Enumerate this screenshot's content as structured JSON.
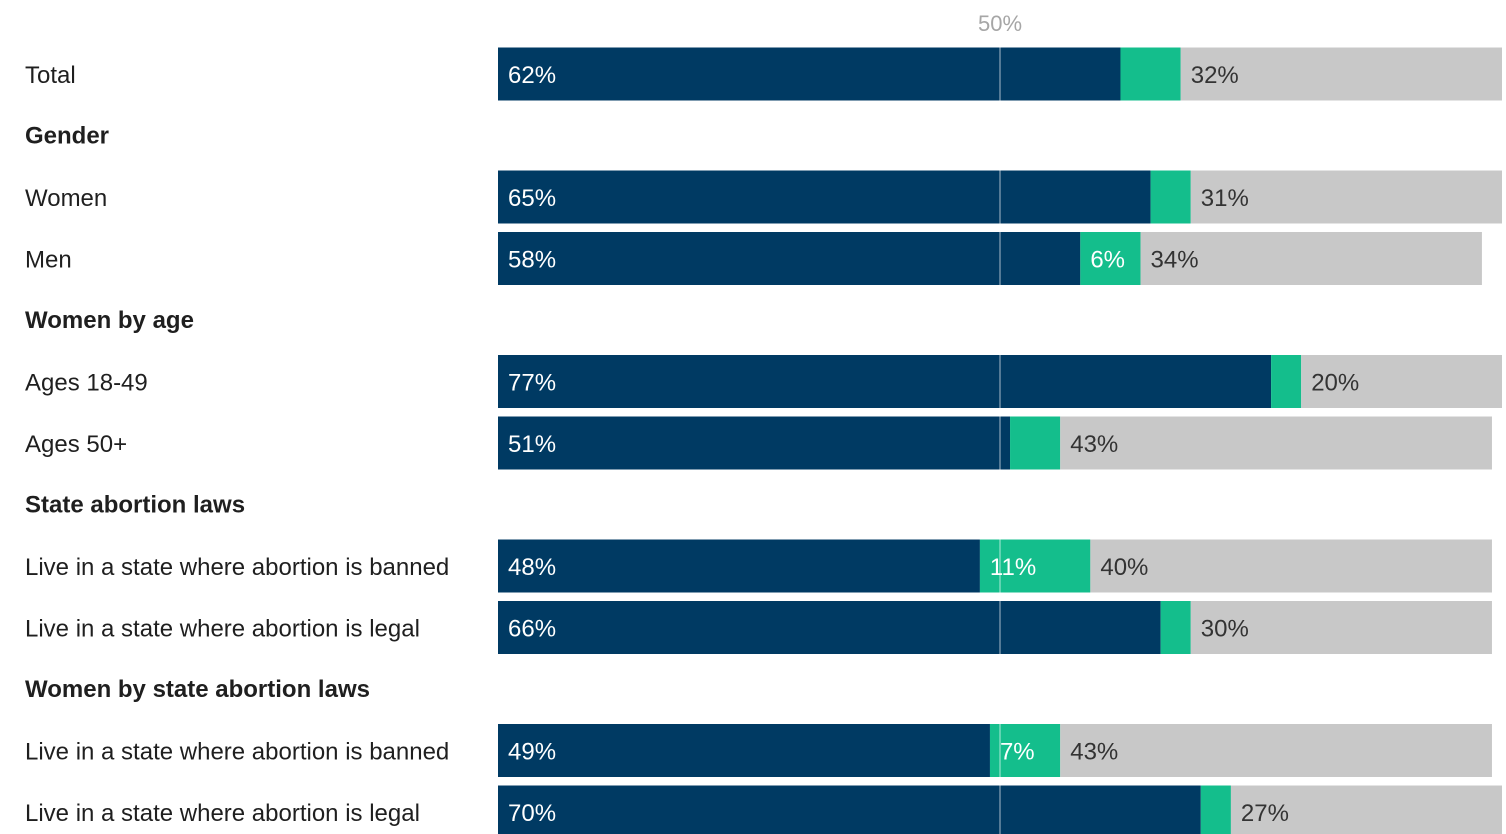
{
  "chart_data": {
    "type": "bar",
    "orientation": "horizontal",
    "stacked": true,
    "reference_line": {
      "value": 50,
      "label": "50%"
    },
    "colors": [
      "#003a63",
      "#14be8c",
      "#c8c8c8"
    ],
    "rows": [
      {
        "kind": "row",
        "label": "Total",
        "values": [
          62,
          6,
          32
        ],
        "labels": [
          "62%",
          "",
          "32%"
        ]
      },
      {
        "kind": "section",
        "label": "Gender"
      },
      {
        "kind": "row",
        "label": "Women",
        "values": [
          65,
          4,
          31
        ],
        "labels": [
          "65%",
          "",
          "31%"
        ]
      },
      {
        "kind": "row",
        "label": "Men",
        "values": [
          58,
          6,
          34
        ],
        "labels": [
          "58%",
          "6%",
          "34%"
        ]
      },
      {
        "kind": "section",
        "label": "Women by age"
      },
      {
        "kind": "row",
        "label": "Ages 18-49",
        "values": [
          77,
          3,
          20
        ],
        "labels": [
          "77%",
          "",
          "20%"
        ]
      },
      {
        "kind": "row",
        "label": "Ages 50+",
        "values": [
          51,
          5,
          43
        ],
        "labels": [
          "51%",
          "",
          "43%"
        ]
      },
      {
        "kind": "section",
        "label": "State abortion laws"
      },
      {
        "kind": "row",
        "label": "Live in a state where abortion is banned",
        "values": [
          48,
          11,
          40
        ],
        "labels": [
          "48%",
          "11%",
          "40%"
        ]
      },
      {
        "kind": "row",
        "label": "Live in a state where abortion is legal",
        "values": [
          66,
          3,
          30
        ],
        "labels": [
          "66%",
          "",
          "30%"
        ]
      },
      {
        "kind": "section",
        "label": "Women by state abortion laws"
      },
      {
        "kind": "row",
        "label": "Live in a state where abortion is banned",
        "values": [
          49,
          7,
          43
        ],
        "labels": [
          "49%",
          "7%",
          "43%"
        ]
      },
      {
        "kind": "row",
        "label": "Live in a state where abortion is legal",
        "values": [
          70,
          3,
          27
        ],
        "labels": [
          "70%",
          "",
          "27%"
        ]
      }
    ]
  }
}
